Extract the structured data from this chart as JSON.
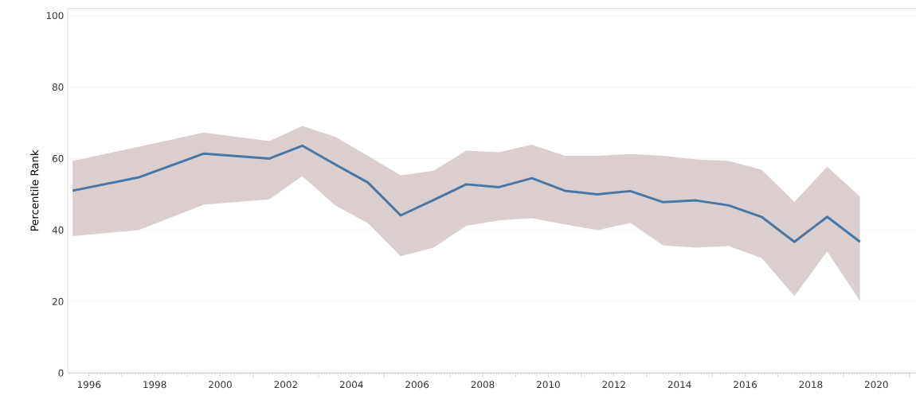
{
  "chart_data": {
    "type": "line",
    "ylabel": "Percentile Rank",
    "x": [
      1995.5,
      1997.5,
      1999.5,
      2001.5,
      2002.5,
      2003.5,
      2004.5,
      2005.5,
      2006.5,
      2007.5,
      2008.5,
      2009.5,
      2010.5,
      2011.5,
      2012.5,
      2013.5,
      2014.5,
      2015.5,
      2016.5,
      2017.5,
      2018.5,
      2019.5
    ],
    "series": [
      {
        "color": "#4a76a4",
        "values": [
          51.0,
          54.7,
          61.4,
          60.0,
          63.6,
          58.4,
          53.3,
          44.1,
          48.4,
          52.8,
          52.0,
          54.5,
          51.0,
          50.0,
          50.9,
          47.8,
          48.3,
          46.9,
          43.7,
          36.7,
          43.7,
          36.7
        ],
        "lower": [
          38.3,
          40.0,
          47.1,
          48.6,
          55.1,
          46.9,
          41.9,
          32.7,
          35.1,
          41.2,
          42.7,
          43.3,
          41.6,
          40.0,
          42.0,
          35.7,
          35.1,
          35.5,
          32.2,
          21.5,
          34.0,
          20.2
        ],
        "upper": [
          59.3,
          63.3,
          67.3,
          64.9,
          69.1,
          66.1,
          60.8,
          55.3,
          56.6,
          62.2,
          61.8,
          63.9,
          60.8,
          60.8,
          61.3,
          60.8,
          59.8,
          59.3,
          56.9,
          47.9,
          57.7,
          49.4
        ]
      }
    ],
    "xlim": [
      1995.35,
      2021.2
    ],
    "ylim": [
      0,
      102
    ],
    "xticks": [
      1996,
      {
        "value": 1997,
        "label": null
      },
      1998,
      {
        "value": 1999,
        "label": null
      },
      2000,
      {
        "value": 2001,
        "label": null
      },
      2002,
      {
        "value": 2003,
        "label": null
      },
      2004,
      {
        "value": 2005,
        "label": null
      },
      2006,
      {
        "value": 2007,
        "label": null
      },
      2008,
      {
        "value": 2009,
        "label": null
      },
      2010,
      {
        "value": 2011,
        "label": null
      },
      2012,
      {
        "value": 2013,
        "label": null
      },
      2014,
      {
        "value": 2015,
        "label": null
      },
      2016,
      {
        "value": 2017,
        "label": null
      },
      2018,
      {
        "value": 2019,
        "label": null
      },
      2020,
      {
        "value": 2021,
        "label": null
      }
    ],
    "yticks": [
      0,
      20,
      40,
      60,
      80,
      100
    ],
    "grid": "y",
    "marker": "none",
    "line_style": "solid"
  }
}
